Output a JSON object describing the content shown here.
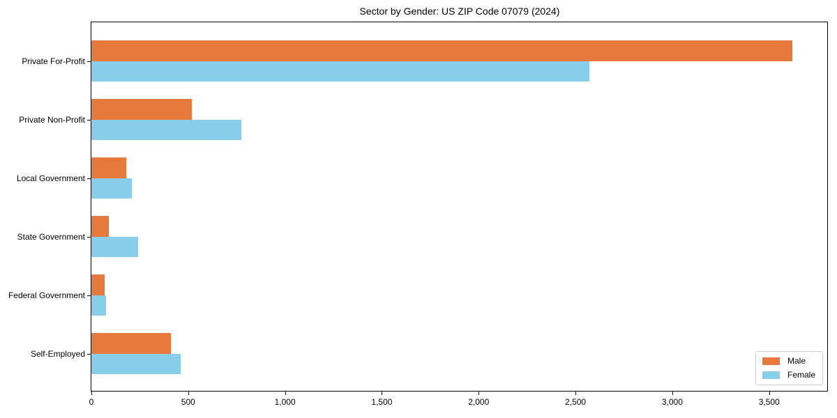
{
  "title": "Sector by Gender: US ZIP Code 07079 (2024)",
  "chart_data": {
    "type": "bar",
    "orientation": "horizontal",
    "title": "Sector by Gender: US ZIP Code 07079 (2024)",
    "categories": [
      "Private For-Profit",
      "Private Non-Profit",
      "Local Government",
      "State Government",
      "Federal Government",
      "Self-Employed"
    ],
    "series": [
      {
        "name": "Male",
        "color": "#E8793D",
        "values": [
          3620,
          520,
          180,
          90,
          70,
          410
        ]
      },
      {
        "name": "Female",
        "color": "#87CEEB",
        "values": [
          2570,
          775,
          210,
          240,
          75,
          460
        ]
      }
    ],
    "xlabel": "",
    "ylabel": "",
    "xlim": [
      0,
      3800
    ],
    "xticks": [
      0,
      500,
      1000,
      1500,
      2000,
      2500,
      3000,
      3500
    ],
    "xtick_labels": [
      "0",
      "500",
      "1,000",
      "1,500",
      "2,000",
      "2,500",
      "3,000",
      "3,500"
    ],
    "grid": false,
    "legend": {
      "position": "lower right",
      "entries": [
        "Male",
        "Female"
      ]
    }
  },
  "colors": {
    "background": "#ffffff",
    "axis": "#000000",
    "text": "#000000",
    "legend_border": "#cccccc"
  }
}
